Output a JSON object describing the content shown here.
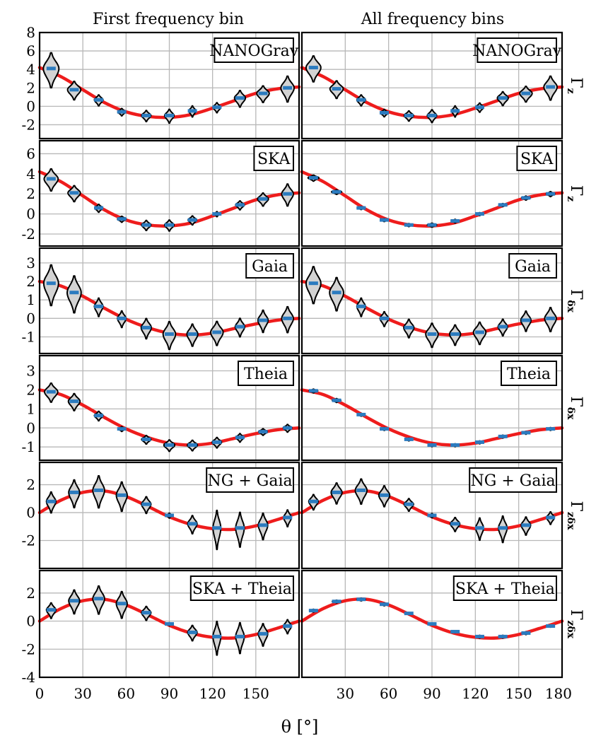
{
  "figure": {
    "column_titles": [
      "First frequency bin",
      "All frequency bins"
    ],
    "xlabel": "θ [°]"
  },
  "chart_data": {
    "type": "violin",
    "x_range": [
      0,
      180
    ],
    "x_ticks": [
      0,
      30,
      60,
      90,
      120,
      150,
      180
    ],
    "x_tick_labels_left": [
      "0",
      "30",
      "60",
      "90",
      "120",
      "150"
    ],
    "x_tick_labels_right": [
      "30",
      "60",
      "90",
      "120",
      "150",
      "180"
    ],
    "violin_x": [
      8,
      24,
      41,
      57,
      74,
      90,
      106,
      123,
      139,
      155,
      172
    ],
    "grid": true,
    "rows": [
      {
        "label": "NANOGrav",
        "right_label": "Γz",
        "ylim": [
          -3.5,
          8
        ],
        "y_ticks": [
          -2,
          0,
          2,
          4,
          6,
          8
        ],
        "y_tick_labels": [
          "-2",
          "0",
          "2",
          "4",
          "6",
          "8"
        ],
        "curve": [
          [
            0,
            4.2
          ],
          [
            15,
            3.2
          ],
          [
            30,
            1.8
          ],
          [
            45,
            0.4
          ],
          [
            60,
            -0.6
          ],
          [
            75,
            -1.1
          ],
          [
            90,
            -1.2
          ],
          [
            105,
            -0.9
          ],
          [
            120,
            -0.2
          ],
          [
            135,
            0.6
          ],
          [
            150,
            1.4
          ],
          [
            165,
            1.9
          ],
          [
            180,
            2.1
          ]
        ],
        "panels": [
          {
            "medians": [
              4.1,
              1.8,
              0.7,
              -0.6,
              -1.0,
              -1.0,
              -0.5,
              -0.1,
              0.9,
              1.4,
              2.0
            ],
            "widths": [
              1.0,
              0.85,
              0.55,
              0.5,
              0.6,
              0.6,
              0.45,
              0.5,
              0.7,
              0.8,
              0.85
            ],
            "spreads": [
              3.8,
              2.0,
              1.2,
              0.8,
              1.2,
              1.5,
              1.2,
              1.1,
              1.8,
              1.8,
              2.8
            ]
          },
          {
            "medians": [
              4.2,
              1.9,
              0.7,
              -0.7,
              -1.0,
              -1.0,
              -0.5,
              -0.1,
              0.9,
              1.4,
              2.1
            ],
            "widths": [
              0.95,
              0.85,
              0.55,
              0.5,
              0.6,
              0.6,
              0.45,
              0.5,
              0.7,
              0.8,
              0.85
            ],
            "spreads": [
              2.8,
              1.9,
              1.2,
              0.8,
              1.1,
              1.4,
              1.2,
              1.0,
              1.5,
              1.7,
              2.6
            ]
          }
        ]
      },
      {
        "label": "SKA",
        "right_label": "Γz",
        "ylim": [
          -3.2,
          7.3
        ],
        "y_ticks": [
          -2,
          0,
          2,
          4,
          6
        ],
        "y_tick_labels": [
          "-2",
          "0",
          "2",
          "4",
          "6"
        ],
        "curve": [
          [
            0,
            4.2
          ],
          [
            15,
            3.2
          ],
          [
            30,
            1.8
          ],
          [
            45,
            0.4
          ],
          [
            60,
            -0.6
          ],
          [
            75,
            -1.1
          ],
          [
            90,
            -1.2
          ],
          [
            105,
            -0.9
          ],
          [
            120,
            -0.2
          ],
          [
            135,
            0.6
          ],
          [
            150,
            1.4
          ],
          [
            165,
            1.9
          ],
          [
            180,
            2.1
          ]
        ],
        "panels": [
          {
            "medians": [
              3.5,
              2.1,
              0.6,
              -0.5,
              -1.1,
              -1.1,
              -0.6,
              0.0,
              0.9,
              1.5,
              2.0
            ],
            "widths": [
              0.9,
              0.8,
              0.5,
              0.55,
              0.6,
              0.6,
              0.55,
              0.35,
              0.55,
              0.7,
              0.75
            ],
            "spreads": [
              2.2,
              1.6,
              0.8,
              0.6,
              1.0,
              1.1,
              0.9,
              0.5,
              0.9,
              1.3,
              2.2
            ]
          },
          {
            "medians": [
              3.6,
              2.2,
              0.6,
              -0.6,
              -1.1,
              -1.1,
              -0.7,
              0.0,
              0.9,
              1.6,
              2.0
            ],
            "widths": [
              0.7,
              0.65,
              0.5,
              0.5,
              0.5,
              0.6,
              0.5,
              0.4,
              0.5,
              0.55,
              0.55
            ],
            "spreads": [
              0.6,
              0.45,
              0.3,
              0.3,
              0.3,
              0.4,
              0.35,
              0.3,
              0.3,
              0.4,
              0.5
            ]
          }
        ]
      },
      {
        "label": "Gaia",
        "right_label": "Γδx",
        "ylim": [
          -1.9,
          3.8
        ],
        "y_ticks": [
          -1,
          0,
          1,
          2,
          3
        ],
        "y_tick_labels": [
          "-1",
          "0",
          "1",
          "2",
          "3"
        ],
        "curve": [
          [
            0,
            2.0
          ],
          [
            15,
            1.75
          ],
          [
            30,
            1.2
          ],
          [
            45,
            0.55
          ],
          [
            60,
            -0.05
          ],
          [
            75,
            -0.5
          ],
          [
            90,
            -0.8
          ],
          [
            105,
            -0.9
          ],
          [
            120,
            -0.8
          ],
          [
            135,
            -0.55
          ],
          [
            150,
            -0.3
          ],
          [
            165,
            -0.1
          ],
          [
            180,
            0.0
          ]
        ],
        "panels": [
          {
            "medians": [
              1.9,
              1.4,
              0.65,
              0.0,
              -0.5,
              -0.85,
              -0.85,
              -0.75,
              -0.45,
              -0.1,
              0.0
            ],
            "widths": [
              0.95,
              0.9,
              0.55,
              0.55,
              0.65,
              0.8,
              0.7,
              0.8,
              0.6,
              0.65,
              0.75
            ],
            "spreads": [
              2.2,
              2.0,
              1.0,
              0.9,
              1.1,
              1.5,
              1.2,
              1.3,
              1.0,
              1.2,
              1.4
            ]
          },
          {
            "medians": [
              1.9,
              1.4,
              0.65,
              0.0,
              -0.5,
              -0.85,
              -0.85,
              -0.75,
              -0.45,
              -0.1,
              0.0
            ],
            "widths": [
              0.95,
              0.9,
              0.55,
              0.55,
              0.65,
              0.8,
              0.7,
              0.8,
              0.6,
              0.65,
              0.75
            ],
            "spreads": [
              2.0,
              1.8,
              1.0,
              0.8,
              1.0,
              1.3,
              1.1,
              1.2,
              0.9,
              1.1,
              1.3
            ]
          }
        ]
      },
      {
        "label": "Theia",
        "right_label": "Γδx",
        "ylim": [
          -1.7,
          3.8
        ],
        "y_ticks": [
          -1,
          0,
          1,
          2,
          3
        ],
        "y_tick_labels": [
          "-1",
          "0",
          "1",
          "2",
          "3"
        ],
        "curve": [
          [
            0,
            2.0
          ],
          [
            15,
            1.75
          ],
          [
            30,
            1.2
          ],
          [
            45,
            0.55
          ],
          [
            60,
            -0.05
          ],
          [
            75,
            -0.5
          ],
          [
            90,
            -0.8
          ],
          [
            105,
            -0.9
          ],
          [
            120,
            -0.8
          ],
          [
            135,
            -0.55
          ],
          [
            150,
            -0.3
          ],
          [
            165,
            -0.1
          ],
          [
            180,
            0.0
          ]
        ],
        "panels": [
          {
            "medians": [
              1.9,
              1.4,
              0.65,
              -0.05,
              -0.6,
              -0.9,
              -0.9,
              -0.75,
              -0.5,
              -0.2,
              0.0
            ],
            "widths": [
              0.85,
              0.75,
              0.55,
              0.45,
              0.6,
              0.7,
              0.65,
              0.6,
              0.5,
              0.55,
              0.55
            ],
            "spreads": [
              1.0,
              0.9,
              0.5,
              0.25,
              0.45,
              0.6,
              0.55,
              0.55,
              0.45,
              0.35,
              0.4
            ]
          },
          {
            "medians": [
              1.95,
              1.45,
              0.7,
              -0.05,
              -0.6,
              -0.9,
              -0.9,
              -0.75,
              -0.45,
              -0.25,
              -0.05
            ],
            "widths": [
              0.55,
              0.55,
              0.45,
              0.4,
              0.45,
              0.45,
              0.45,
              0.4,
              0.35,
              0.35,
              0.35
            ],
            "spreads": [
              0.2,
              0.2,
              0.15,
              0.15,
              0.15,
              0.15,
              0.15,
              0.15,
              0.15,
              0.15,
              0.15
            ]
          }
        ]
      },
      {
        "label": "NG + Gaia",
        "right_label": "Γzδx",
        "ylim": [
          -4,
          3.6
        ],
        "y_ticks": [
          -2,
          0,
          2
        ],
        "y_tick_labels": [
          "-2",
          "0",
          "2"
        ],
        "curve": [
          [
            0,
            0.0
          ],
          [
            15,
            0.9
          ],
          [
            30,
            1.45
          ],
          [
            45,
            1.55
          ],
          [
            60,
            1.15
          ],
          [
            75,
            0.45
          ],
          [
            90,
            -0.3
          ],
          [
            105,
            -0.85
          ],
          [
            120,
            -1.15
          ],
          [
            135,
            -1.2
          ],
          [
            150,
            -0.95
          ],
          [
            165,
            -0.5
          ],
          [
            180,
            0.0
          ]
        ],
        "panels": [
          {
            "medians": [
              0.8,
              1.45,
              1.6,
              1.25,
              0.6,
              -0.2,
              -0.8,
              -1.1,
              -1.1,
              -0.9,
              -0.35
            ],
            "widths": [
              0.6,
              0.7,
              0.75,
              0.7,
              0.6,
              0.4,
              0.6,
              0.5,
              0.55,
              0.6,
              0.5
            ],
            "spreads": [
              1.5,
              2.0,
              2.3,
              2.1,
              1.2,
              0.35,
              1.3,
              2.8,
              2.5,
              1.9,
              1.2
            ]
          },
          {
            "medians": [
              0.8,
              1.45,
              1.6,
              1.25,
              0.6,
              -0.2,
              -0.8,
              -1.1,
              -1.1,
              -0.9,
              -0.35
            ],
            "widths": [
              0.6,
              0.7,
              0.75,
              0.7,
              0.6,
              0.4,
              0.6,
              0.5,
              0.55,
              0.6,
              0.5
            ],
            "spreads": [
              1.1,
              1.5,
              1.8,
              1.5,
              0.9,
              0.3,
              1.0,
              1.6,
              1.9,
              1.3,
              0.9
            ]
          }
        ]
      },
      {
        "label": "SKA + Theia",
        "right_label": "Γzδx",
        "ylim": [
          -4,
          3.6
        ],
        "y_ticks": [
          -4,
          -2,
          0,
          2
        ],
        "y_tick_labels": [
          "-4",
          "-2",
          "0",
          "2"
        ],
        "curve": [
          [
            0,
            0.0
          ],
          [
            15,
            0.9
          ],
          [
            30,
            1.45
          ],
          [
            45,
            1.55
          ],
          [
            60,
            1.15
          ],
          [
            75,
            0.45
          ],
          [
            90,
            -0.3
          ],
          [
            105,
            -0.85
          ],
          [
            120,
            -1.15
          ],
          [
            135,
            -1.2
          ],
          [
            150,
            -0.95
          ],
          [
            165,
            -0.5
          ],
          [
            180,
            0.0
          ]
        ],
        "panels": [
          {
            "medians": [
              0.8,
              1.45,
              1.6,
              1.25,
              0.6,
              -0.2,
              -0.8,
              -1.1,
              -1.1,
              -0.9,
              -0.35
            ],
            "widths": [
              0.6,
              0.7,
              0.75,
              0.7,
              0.6,
              0.4,
              0.6,
              0.5,
              0.55,
              0.6,
              0.5
            ],
            "spreads": [
              1.1,
              1.7,
              2.0,
              1.9,
              1.0,
              0.2,
              1.1,
              2.4,
              2.2,
              1.6,
              1.0
            ]
          },
          {
            "medians": [
              0.75,
              1.4,
              1.55,
              1.2,
              0.55,
              -0.2,
              -0.75,
              -1.1,
              -1.1,
              -0.85,
              -0.35
            ],
            "widths": [
              0.5,
              0.55,
              0.55,
              0.5,
              0.45,
              0.35,
              0.45,
              0.5,
              0.5,
              0.5,
              0.45
            ],
            "spreads": [
              0.2,
              0.2,
              0.2,
              0.2,
              0.15,
              0.1,
              0.15,
              0.2,
              0.2,
              0.2,
              0.15
            ]
          }
        ]
      }
    ]
  }
}
